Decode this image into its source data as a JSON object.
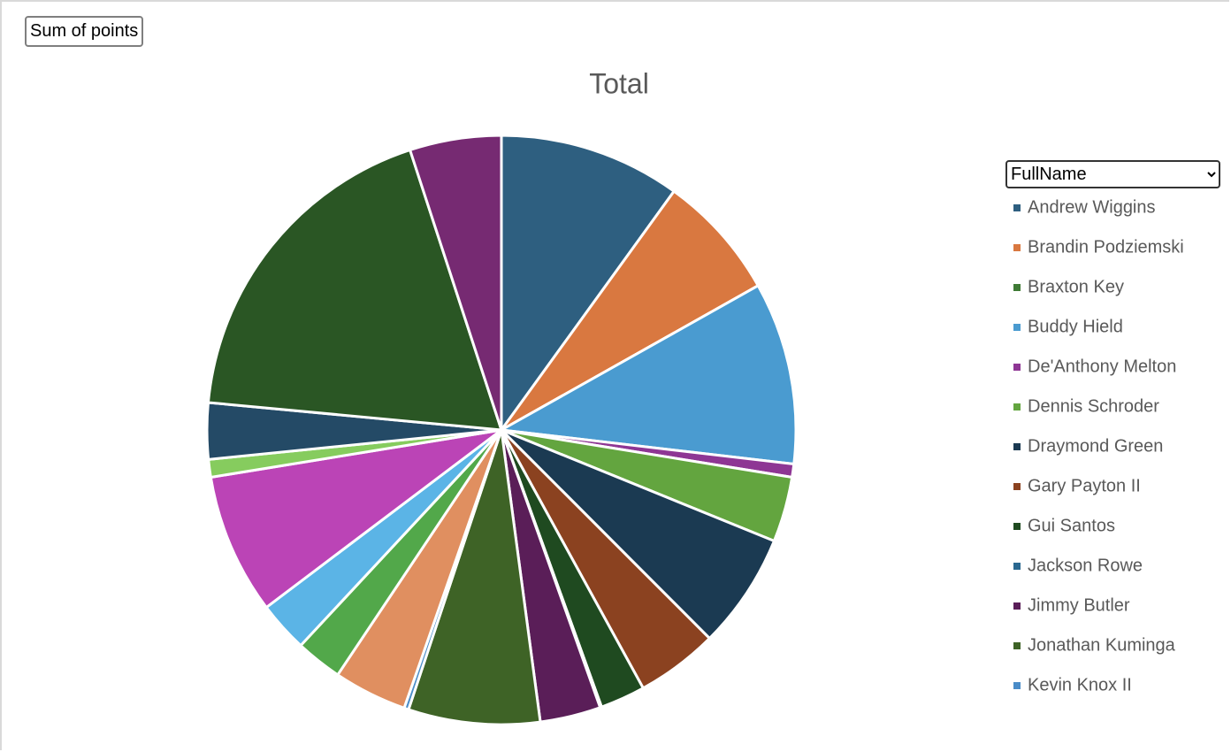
{
  "chart_data": {
    "type": "pie",
    "title": "Total",
    "field_button": "Sum of points",
    "legend_field": "FullName",
    "categories": [
      "Andrew Wiggins",
      "Brandin Podziemski",
      "Braxton Key",
      "Buddy Hield",
      "De'Anthony Melton",
      "Dennis Schroder",
      "Draymond Green",
      "Gary Payton II",
      "Gui Santos",
      "Jackson Rowe",
      "Jimmy Butler",
      "Jonathan Kuminga",
      "Kevin Knox II",
      null,
      null,
      null,
      null,
      null,
      null,
      null,
      null
    ],
    "values": [
      35.9,
      24.8,
      0,
      36,
      2.6,
      12.9,
      22.9,
      16.2,
      8.9,
      0.3,
      12,
      26,
      0.9,
      14.5,
      9.2,
      10,
      27.8,
      3.5,
      11.1,
      66.6,
      18.1
    ],
    "colors": [
      "#2e5f80",
      "#d97840",
      "#3f7a35",
      "#4a9bd0",
      "#8e3694",
      "#63a53f",
      "#1b3a52",
      "#8b4220",
      "#1f4a20",
      "#2a6890",
      "#5a1e58",
      "#3e6326",
      "#4a8cc8",
      "#e08f60",
      "#52a84a",
      "#5bb4e6",
      "#bb44b6",
      "#86cc5e",
      "#244a66",
      "#2a5624",
      "#762a72"
    ]
  }
}
